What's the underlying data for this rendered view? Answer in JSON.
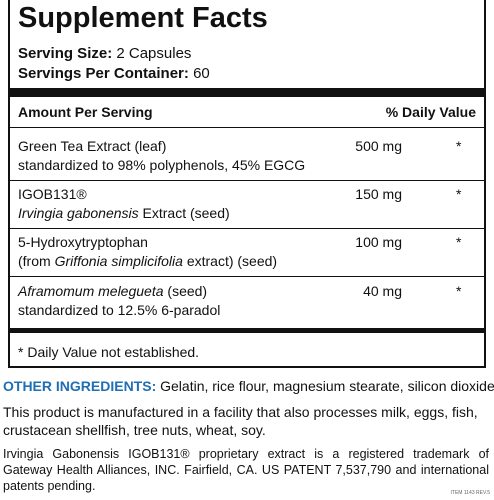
{
  "label": {
    "title": "Supplement Facts",
    "serving_size": {
      "label": "Serving Size:",
      "value": "2 Capsules"
    },
    "servings_per_container": {
      "label": "Servings Per Container:",
      "value": "60"
    },
    "header": {
      "amount": "Amount Per Serving",
      "daily_value": "% Daily Value"
    },
    "rows": [
      {
        "line1": [
          "Green Tea Extract (leaf)"
        ],
        "line2": [
          "standardized to 98% polyphenols, 45% EGCG"
        ],
        "amount": "500 mg",
        "dv": "*"
      },
      {
        "line1": [
          "IGOB131®"
        ],
        "line2": [
          "Irvingia gabonensis",
          " Extract (seed)"
        ],
        "amount": "150 mg",
        "dv": "*"
      },
      {
        "line1": [
          "5-Hydroxytryptophan"
        ],
        "line2": [
          "(from ",
          "Griffonia simplicifolia",
          " extract) (seed)"
        ],
        "amount": "100 mg",
        "dv": "*"
      },
      {
        "line1": [
          "Aframomum melegueta",
          " (seed)"
        ],
        "line2": [
          "standardized to 12.5% 6-paradol"
        ],
        "amount": "40 mg",
        "dv": "*"
      }
    ],
    "footnote": "* Daily Value not established."
  },
  "other_ingredients": {
    "label": "OTHER INGREDIENTS:",
    "text": "Gelatin, rice flour, magnesium stearate, silicon dioxide."
  },
  "facility_notice": [
    "This product is manufactured in a facility that also processes milk, eggs, fish,",
    "crustacean shellfish, tree nuts, wheat, soy."
  ],
  "trademark_notice": "Irvingia Gabonensis IGOB131® proprietary extract is a registered trademark of Gateway Health Alliances, INC. Fairfield, CA. US PATENT 7,537,790 and international patents pending.",
  "item_code": "ITEM 1143 REV.5"
}
